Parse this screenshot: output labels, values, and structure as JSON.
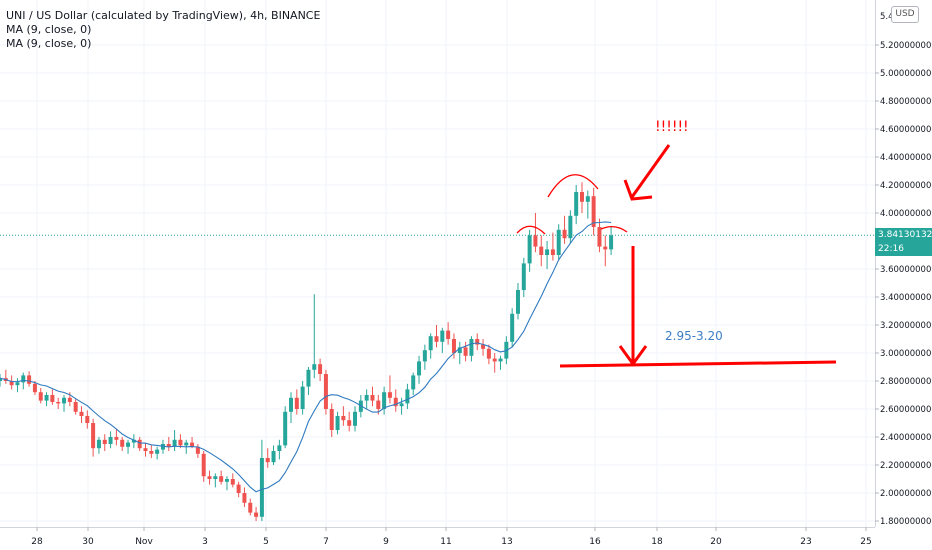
{
  "header": {
    "symbol": "UNI / US Dollar (calculated by TradingView), 4h, BINANCE",
    "indicators": [
      "MA (9, close, 0)",
      "MA (9, close, 0)"
    ]
  },
  "scale_button": "USD",
  "price_axis": {
    "top_partial": "5.4",
    "ticks": [
      "5.20000000",
      "5.00000000",
      "4.80000000",
      "4.60000000",
      "4.40000000",
      "4.20000000",
      "4.00000000",
      "3.60000000",
      "3.40000000",
      "3.20000000",
      "3.00000000",
      "2.80000000",
      "2.60000000",
      "2.40000000",
      "2.20000000",
      "2.00000000",
      "1.80000000"
    ],
    "last_price": "3.84130132",
    "countdown": "22:16"
  },
  "time_axis": [
    "28",
    "30",
    "Nov",
    "3",
    "5",
    "7",
    "9",
    "11",
    "13",
    "16",
    "18",
    "20",
    "23",
    "25"
  ],
  "annotations": {
    "exclamation": "!!!!!!",
    "target_label": "2.95-3.20"
  },
  "colors": {
    "up": "#26a69a",
    "down": "#ef5350",
    "ma": "#2f7abf",
    "annotation": "#ff0000",
    "target_text": "#3d7fc4",
    "last_price_line": "#26a69a"
  },
  "chart_data": {
    "type": "candlestick",
    "timeframe": "4h",
    "ylim": [
      1.78,
      5.45
    ],
    "price_line": 3.8413,
    "target_zone": [
      2.95,
      3.2
    ],
    "ohlc": [
      [
        2.8,
        2.85,
        2.76,
        2.82
      ],
      [
        2.82,
        2.88,
        2.78,
        2.8
      ],
      [
        2.8,
        2.84,
        2.74,
        2.77
      ],
      [
        2.77,
        2.82,
        2.72,
        2.79
      ],
      [
        2.79,
        2.86,
        2.74,
        2.84
      ],
      [
        2.84,
        2.87,
        2.76,
        2.78
      ],
      [
        2.78,
        2.8,
        2.7,
        2.72
      ],
      [
        2.72,
        2.75,
        2.64,
        2.66
      ],
      [
        2.66,
        2.72,
        2.62,
        2.7
      ],
      [
        2.7,
        2.74,
        2.63,
        2.65
      ],
      [
        2.65,
        2.68,
        2.6,
        2.64
      ],
      [
        2.64,
        2.7,
        2.58,
        2.68
      ],
      [
        2.68,
        2.72,
        2.62,
        2.65
      ],
      [
        2.65,
        2.67,
        2.56,
        2.58
      ],
      [
        2.58,
        2.62,
        2.5,
        2.55
      ],
      [
        2.55,
        2.59,
        2.46,
        2.5
      ],
      [
        2.5,
        2.53,
        2.26,
        2.32
      ],
      [
        2.32,
        2.4,
        2.28,
        2.38
      ],
      [
        2.38,
        2.42,
        2.3,
        2.35
      ],
      [
        2.35,
        2.44,
        2.32,
        2.4
      ],
      [
        2.4,
        2.46,
        2.34,
        2.38
      ],
      [
        2.38,
        2.4,
        2.3,
        2.33
      ],
      [
        2.33,
        2.38,
        2.28,
        2.36
      ],
      [
        2.36,
        2.42,
        2.32,
        2.38
      ],
      [
        2.38,
        2.4,
        2.3,
        2.32
      ],
      [
        2.32,
        2.36,
        2.26,
        2.3
      ],
      [
        2.3,
        2.34,
        2.25,
        2.28
      ],
      [
        2.28,
        2.33,
        2.24,
        2.31
      ],
      [
        2.31,
        2.38,
        2.28,
        2.35
      ],
      [
        2.35,
        2.4,
        2.3,
        2.33
      ],
      [
        2.33,
        2.45,
        2.3,
        2.38
      ],
      [
        2.38,
        2.42,
        2.32,
        2.34
      ],
      [
        2.34,
        2.38,
        2.28,
        2.36
      ],
      [
        2.36,
        2.4,
        2.32,
        2.33
      ],
      [
        2.33,
        2.35,
        2.25,
        2.28
      ],
      [
        2.28,
        2.3,
        2.08,
        2.12
      ],
      [
        2.12,
        2.16,
        2.06,
        2.1
      ],
      [
        2.1,
        2.14,
        2.04,
        2.12
      ],
      [
        2.12,
        2.16,
        2.06,
        2.08
      ],
      [
        2.08,
        2.12,
        2.02,
        2.1
      ],
      [
        2.1,
        2.14,
        2.04,
        2.06
      ],
      [
        2.06,
        2.08,
        1.97,
        2.0
      ],
      [
        2.0,
        2.04,
        1.9,
        1.93
      ],
      [
        1.93,
        1.96,
        1.84,
        1.86
      ],
      [
        1.86,
        1.9,
        1.8,
        1.83
      ],
      [
        1.83,
        2.38,
        1.8,
        2.25
      ],
      [
        2.25,
        2.32,
        2.18,
        2.22
      ],
      [
        2.22,
        2.34,
        2.2,
        2.3
      ],
      [
        2.3,
        2.38,
        2.24,
        2.34
      ],
      [
        2.34,
        2.62,
        2.32,
        2.58
      ],
      [
        2.58,
        2.72,
        2.5,
        2.68
      ],
      [
        2.68,
        2.74,
        2.56,
        2.6
      ],
      [
        2.6,
        2.8,
        2.56,
        2.76
      ],
      [
        2.76,
        2.9,
        2.7,
        2.88
      ],
      [
        2.88,
        3.42,
        2.82,
        2.92
      ],
      [
        2.92,
        2.96,
        2.8,
        2.85
      ],
      [
        2.85,
        2.88,
        2.56,
        2.6
      ],
      [
        2.6,
        2.64,
        2.4,
        2.45
      ],
      [
        2.45,
        2.58,
        2.42,
        2.55
      ],
      [
        2.55,
        2.62,
        2.48,
        2.52
      ],
      [
        2.52,
        2.58,
        2.44,
        2.48
      ],
      [
        2.48,
        2.62,
        2.44,
        2.58
      ],
      [
        2.58,
        2.7,
        2.54,
        2.66
      ],
      [
        2.66,
        2.74,
        2.6,
        2.7
      ],
      [
        2.7,
        2.76,
        2.62,
        2.66
      ],
      [
        2.66,
        2.7,
        2.56,
        2.6
      ],
      [
        2.6,
        2.76,
        2.56,
        2.72
      ],
      [
        2.72,
        2.84,
        2.64,
        2.68
      ],
      [
        2.68,
        2.74,
        2.58,
        2.62
      ],
      [
        2.62,
        2.68,
        2.56,
        2.64
      ],
      [
        2.64,
        2.78,
        2.6,
        2.74
      ],
      [
        2.74,
        2.86,
        2.7,
        2.84
      ],
      [
        2.84,
        2.98,
        2.78,
        2.94
      ],
      [
        2.94,
        3.06,
        2.88,
        3.02
      ],
      [
        3.02,
        3.14,
        2.96,
        3.12
      ],
      [
        3.12,
        3.2,
        3.04,
        3.08
      ],
      [
        3.08,
        3.18,
        3.0,
        3.16
      ],
      [
        3.16,
        3.22,
        3.06,
        3.1
      ],
      [
        3.1,
        3.14,
        2.96,
        3.0
      ],
      [
        3.0,
        3.08,
        2.92,
        3.04
      ],
      [
        3.04,
        3.08,
        2.94,
        2.98
      ],
      [
        2.98,
        3.12,
        2.94,
        3.1
      ],
      [
        3.1,
        3.14,
        3.02,
        3.06
      ],
      [
        3.06,
        3.1,
        2.98,
        3.03
      ],
      [
        3.03,
        3.06,
        2.92,
        2.96
      ],
      [
        2.96,
        3.0,
        2.86,
        2.94
      ],
      [
        2.94,
        2.98,
        2.88,
        2.96
      ],
      [
        2.96,
        3.12,
        2.92,
        3.08
      ],
      [
        3.08,
        3.32,
        3.04,
        3.28
      ],
      [
        3.28,
        3.5,
        3.24,
        3.45
      ],
      [
        3.45,
        3.68,
        3.4,
        3.64
      ],
      [
        3.64,
        3.88,
        3.58,
        3.84
      ],
      [
        3.84,
        4.0,
        3.72,
        3.76
      ],
      [
        3.76,
        3.84,
        3.62,
        3.7
      ],
      [
        3.7,
        3.8,
        3.6,
        3.74
      ],
      [
        3.74,
        3.86,
        3.66,
        3.7
      ],
      [
        3.7,
        3.92,
        3.66,
        3.88
      ],
      [
        3.88,
        3.98,
        3.78,
        3.82
      ],
      [
        3.82,
        4.02,
        3.78,
        3.98
      ],
      [
        3.98,
        4.2,
        3.92,
        4.15
      ],
      [
        4.15,
        4.22,
        4.0,
        4.08
      ],
      [
        4.08,
        4.16,
        3.96,
        4.12
      ],
      [
        4.12,
        4.18,
        3.84,
        3.9
      ],
      [
        3.9,
        3.96,
        3.72,
        3.76
      ],
      [
        3.76,
        3.84,
        3.62,
        3.74
      ],
      [
        3.74,
        3.9,
        3.7,
        3.84
      ]
    ]
  }
}
